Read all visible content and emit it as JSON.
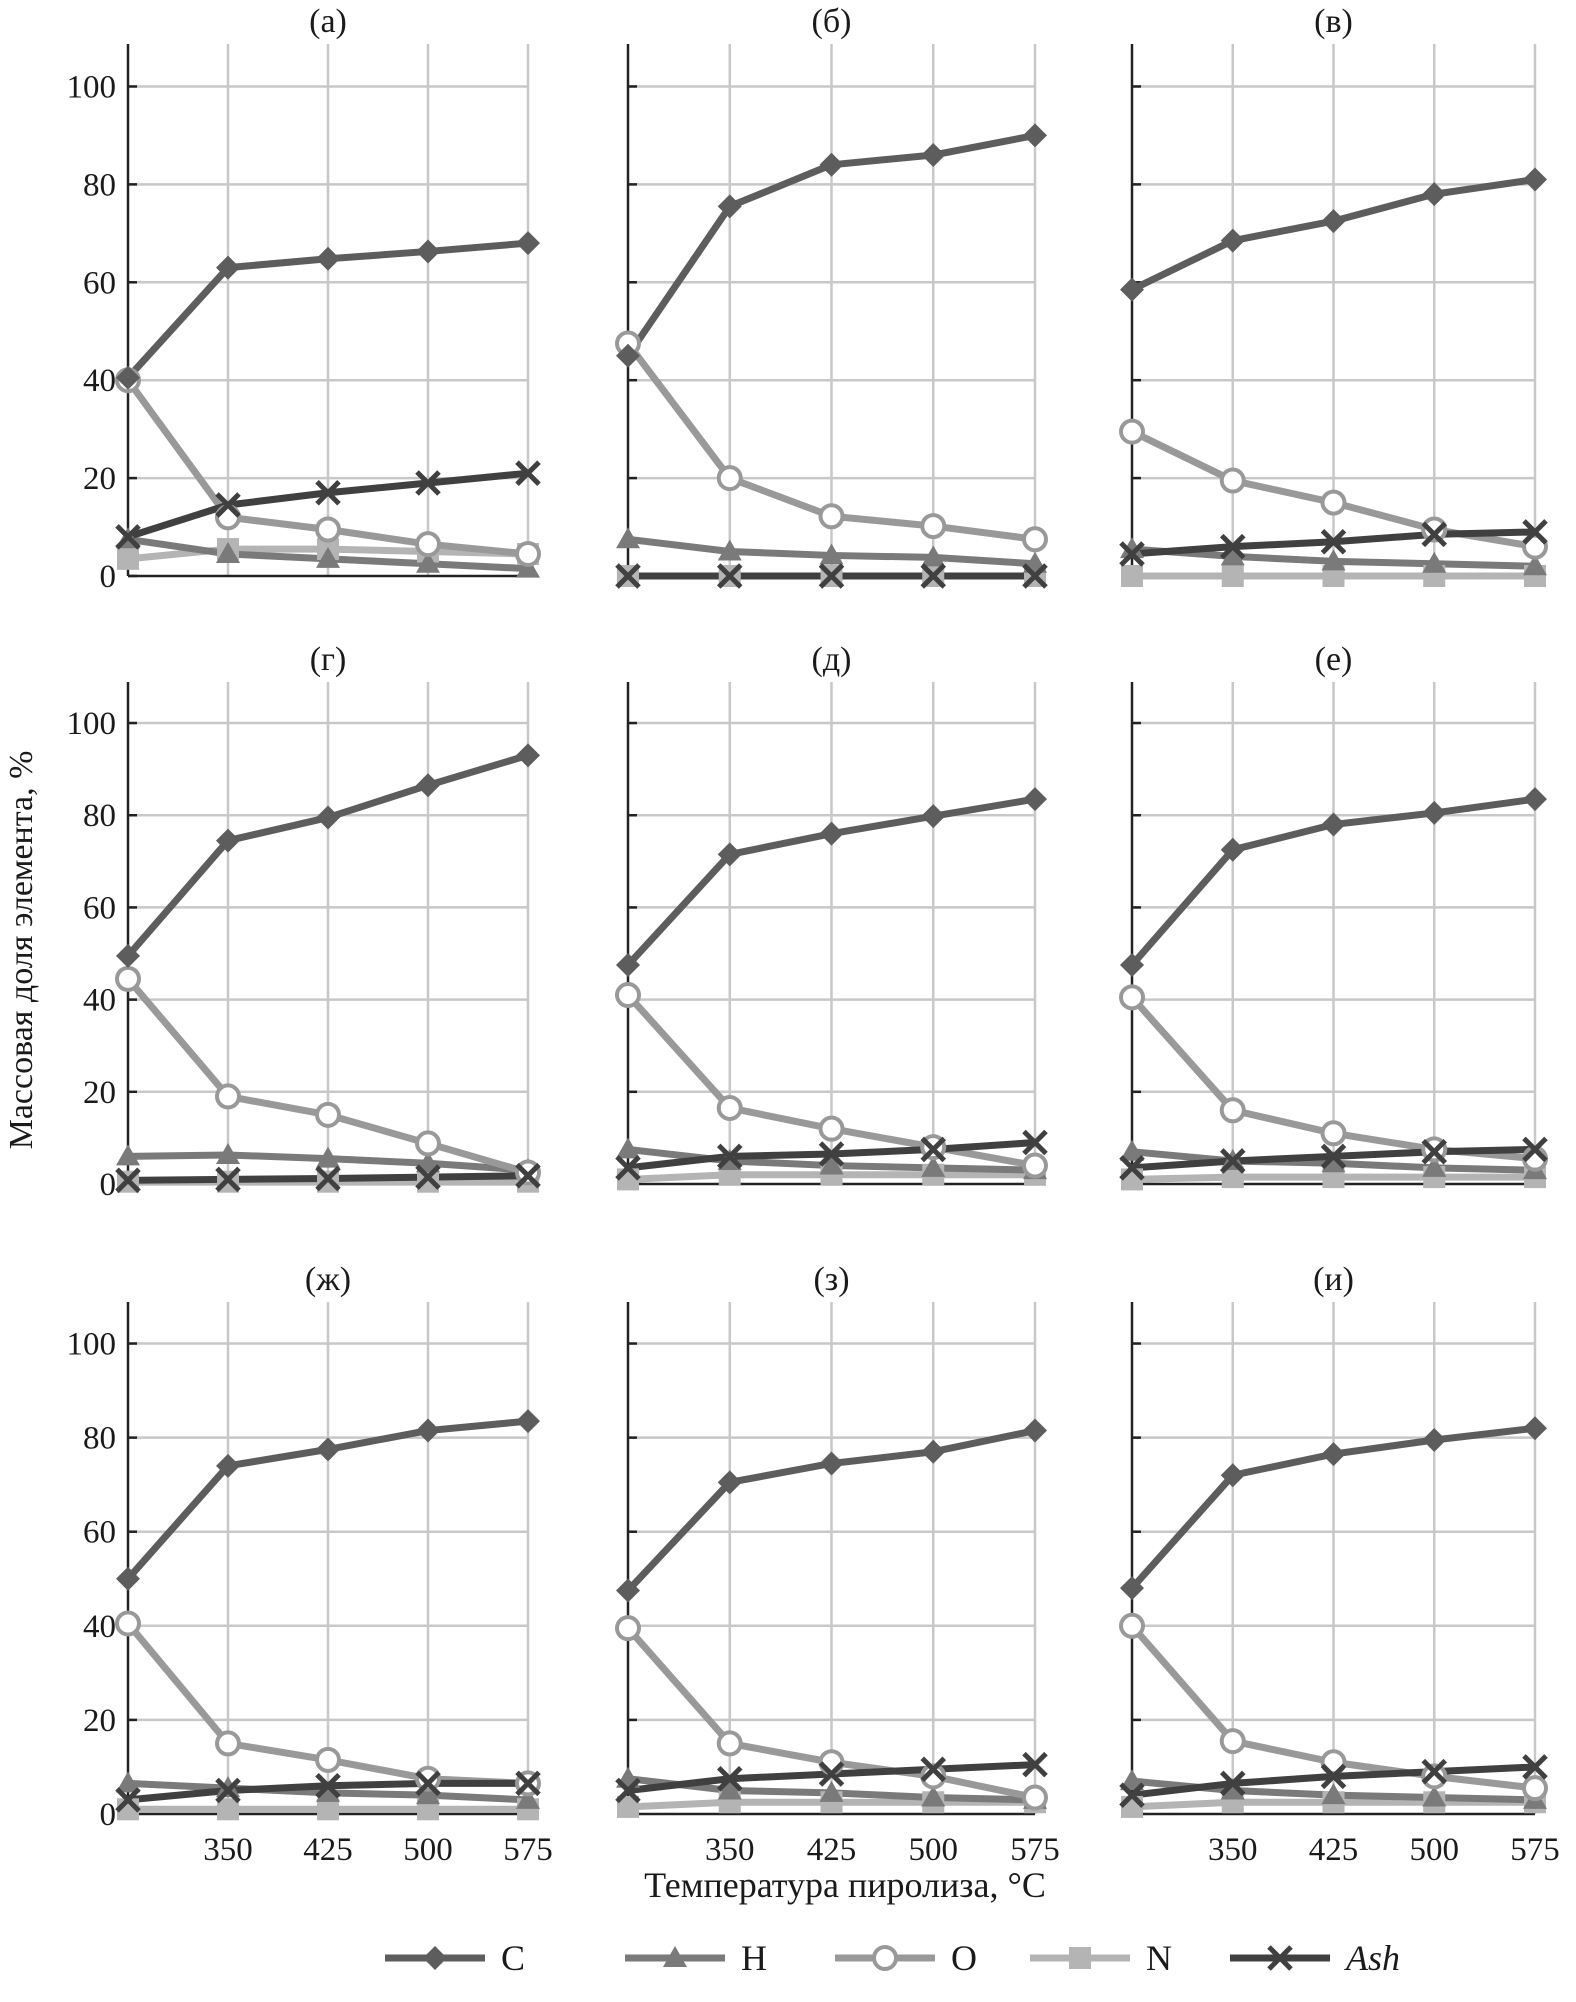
{
  "chart_data": {
    "type": "line",
    "xlabel": "Температура пиролиза, °C",
    "ylabel": "Массовая доля элемента, %",
    "x": [
      "",
      "350",
      "425",
      "500",
      "575"
    ],
    "ylim": [
      0,
      105
    ],
    "yticks": [
      0,
      20,
      40,
      60,
      80,
      100
    ],
    "grid": true,
    "legend_position": "bottom",
    "legend": [
      {
        "key": "C",
        "label": "C",
        "marker": "diamond",
        "color": "#5d5d5d"
      },
      {
        "key": "H",
        "label": "H",
        "marker": "triangle",
        "color": "#7a7a7a"
      },
      {
        "key": "O",
        "label": "O",
        "marker": "circle-open",
        "color": "#999999"
      },
      {
        "key": "N",
        "label": "N",
        "marker": "square",
        "color": "#b4b4b4"
      },
      {
        "key": "Ash",
        "label": "Ash",
        "marker": "x",
        "color": "#404040"
      }
    ],
    "panels": [
      {
        "title": "(а)",
        "series": {
          "C": [
            40.5,
            63,
            64.8,
            66.3,
            68
          ],
          "H": [
            7.5,
            4.5,
            3.5,
            2.5,
            1.5
          ],
          "O": [
            40,
            12,
            9.5,
            6.5,
            4.5
          ],
          "N": [
            3.5,
            5.5,
            5.5,
            5,
            4.5
          ],
          "Ash": [
            8,
            14.5,
            17,
            19,
            21
          ]
        }
      },
      {
        "title": "(б)",
        "series": {
          "C": [
            45,
            75.5,
            84,
            86,
            90
          ],
          "H": [
            7.5,
            5,
            4.2,
            3.8,
            2.5
          ],
          "O": [
            47.5,
            20,
            12.2,
            10.2,
            7.5
          ],
          "N": [
            0,
            0,
            0,
            0,
            0
          ],
          "Ash": [
            0,
            0,
            0,
            0,
            0
          ]
        }
      },
      {
        "title": "(в)",
        "series": {
          "C": [
            58.5,
            68.5,
            72.5,
            78,
            81
          ],
          "H": [
            5.5,
            4,
            3,
            2.5,
            2
          ],
          "O": [
            29.5,
            19.5,
            15,
            9.5,
            6
          ],
          "N": [
            0,
            0,
            0,
            0,
            0
          ],
          "Ash": [
            4.5,
            6,
            7,
            8.5,
            9
          ]
        }
      },
      {
        "title": "(г)",
        "series": {
          "C": [
            49.5,
            74.5,
            79.5,
            86.5,
            93
          ],
          "H": [
            6,
            6.3,
            5.5,
            4.5,
            3
          ],
          "O": [
            44.5,
            19,
            15,
            8.8,
            2.5
          ],
          "N": [
            0.5,
            0.5,
            0.5,
            0.5,
            0.5
          ],
          "Ash": [
            0.8,
            1,
            1.2,
            1.5,
            1.8
          ]
        }
      },
      {
        "title": "(д)",
        "series": {
          "C": [
            47.5,
            71.5,
            76,
            79.8,
            83.5
          ],
          "H": [
            7.5,
            5,
            4,
            3.5,
            3
          ],
          "O": [
            41,
            16.5,
            12,
            8,
            4
          ],
          "N": [
            1,
            2,
            2,
            2,
            2
          ],
          "Ash": [
            3.5,
            6,
            6.5,
            7.5,
            9
          ]
        }
      },
      {
        "title": "(е)",
        "series": {
          "C": [
            47.5,
            72.5,
            78,
            80.5,
            83.5
          ],
          "H": [
            7,
            5,
            4.5,
            3.5,
            3
          ],
          "O": [
            40.5,
            16,
            11,
            7.5,
            5.5
          ],
          "N": [
            1,
            1.5,
            1.5,
            1.5,
            1.5
          ],
          "Ash": [
            3.5,
            5,
            6,
            7,
            7.5
          ]
        }
      },
      {
        "title": "(ж)",
        "series": {
          "C": [
            50,
            74,
            77.5,
            81.5,
            83.5
          ],
          "H": [
            6.5,
            5.5,
            4.5,
            4,
            3
          ],
          "O": [
            40.5,
            15,
            11.5,
            7.5,
            6.5
          ],
          "N": [
            1,
            1,
            1,
            1,
            1
          ],
          "Ash": [
            3,
            5,
            6,
            6.5,
            6.5
          ]
        }
      },
      {
        "title": "(з)",
        "series": {
          "C": [
            47.5,
            70.5,
            74.5,
            77,
            81.5
          ],
          "H": [
            7.5,
            5,
            4.5,
            3.5,
            3
          ],
          "O": [
            39.5,
            15,
            11,
            8,
            3.5
          ],
          "N": [
            1.5,
            2.5,
            2.5,
            2.5,
            2.5
          ],
          "Ash": [
            5,
            7.5,
            8.5,
            9.5,
            10.5
          ]
        }
      },
      {
        "title": "(и)",
        "series": {
          "C": [
            48,
            72,
            76.5,
            79.5,
            82
          ],
          "H": [
            7,
            5,
            4,
            3.5,
            3
          ],
          "O": [
            40,
            15.5,
            11,
            8,
            5.5
          ],
          "N": [
            1.5,
            2.5,
            2.5,
            2.5,
            2.5
          ],
          "Ash": [
            4,
            6.5,
            8,
            9,
            10
          ]
        }
      }
    ]
  }
}
